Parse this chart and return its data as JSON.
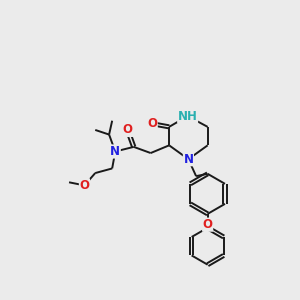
{
  "background_color": "#ebebeb",
  "bond_color": "#1a1a1a",
  "atom_colors": {
    "N": "#2020e0",
    "O": "#e02020",
    "NH": "#2ab0b0",
    "C": "#1a1a1a"
  },
  "font_size": 8.5
}
